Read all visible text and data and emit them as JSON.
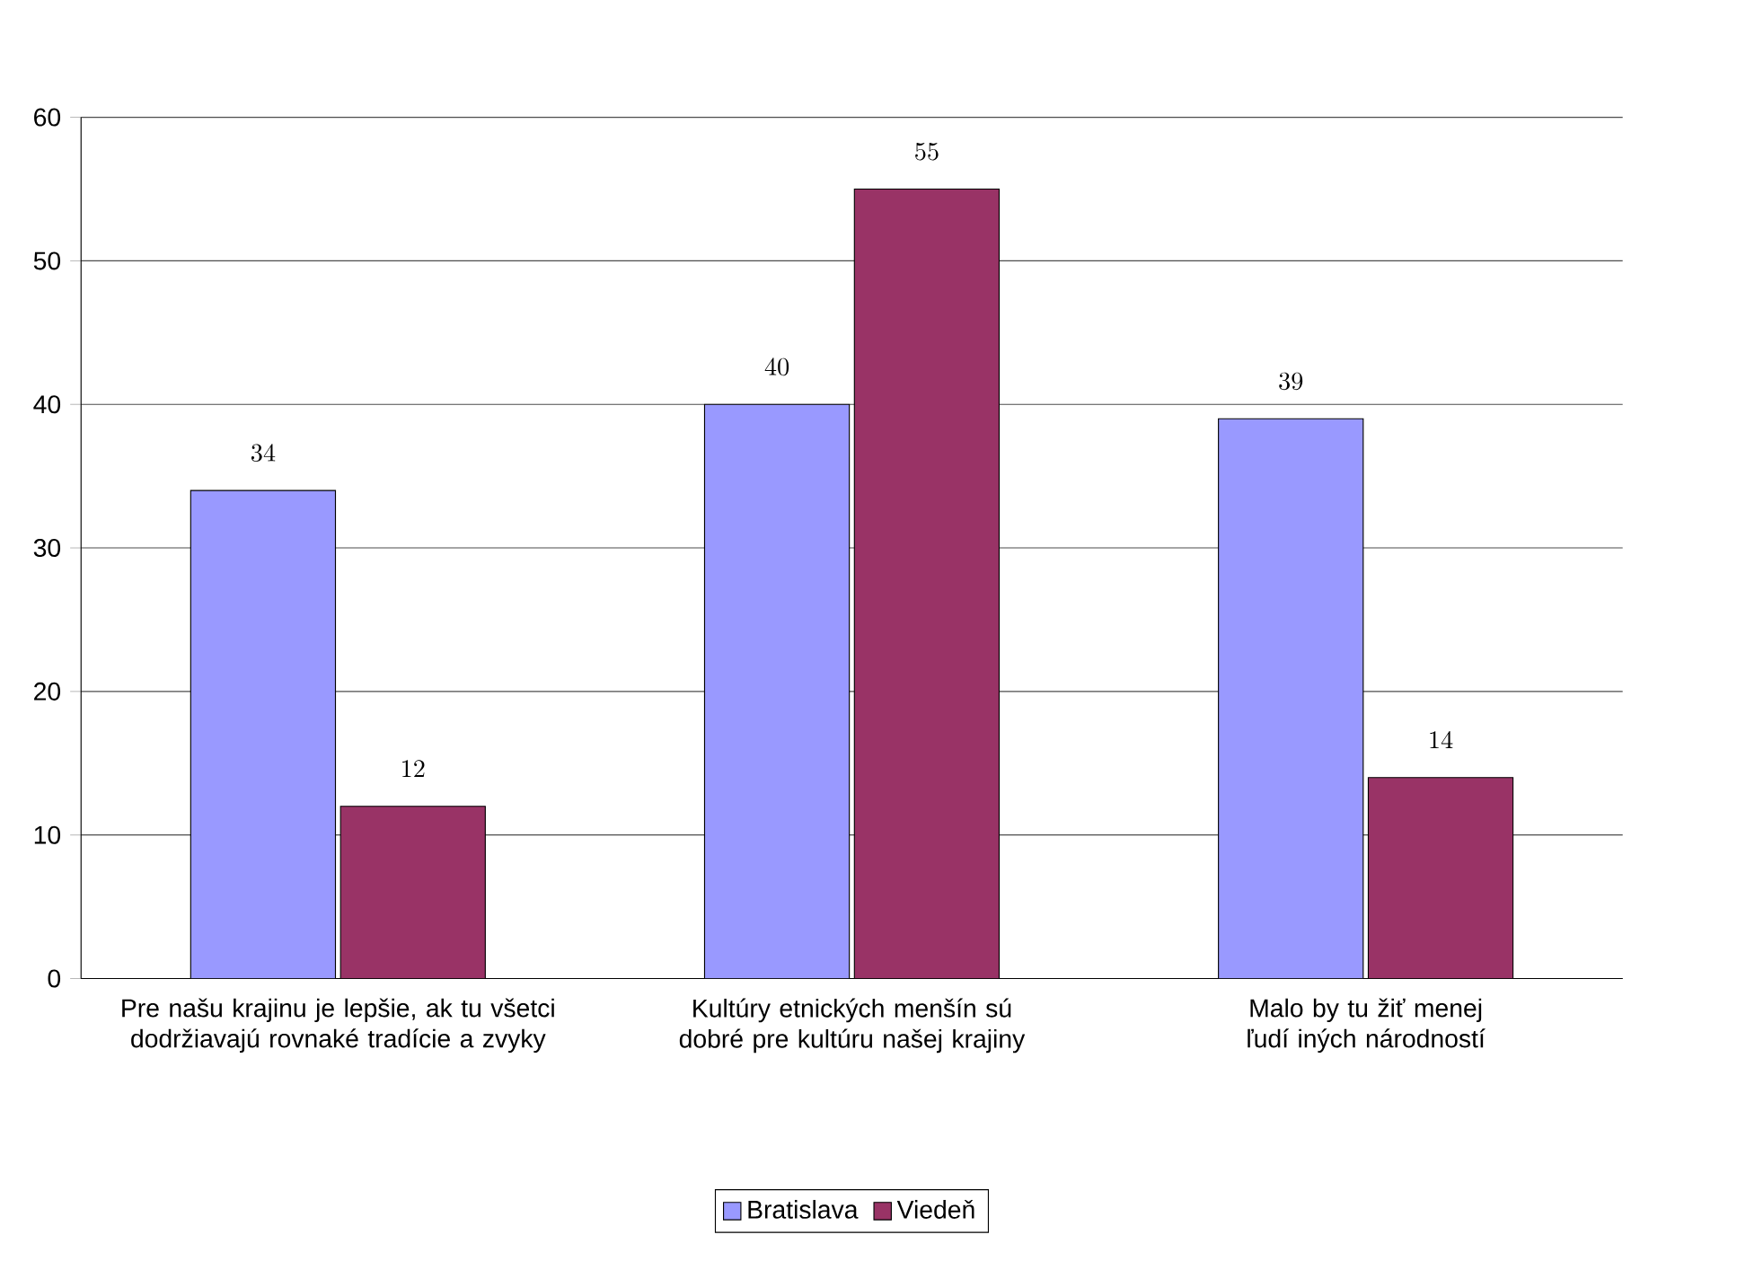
{
  "chart_data": {
    "type": "bar",
    "categories": [
      "Pre našu krajinu je lepšie, ak tu všetci dodržiavajú rovnaké tradície a zvyky",
      "Kultúry etnických menšín sú dobré pre kultúru našej krajiny",
      "Malo by tu žiť menej ľudí iných národností"
    ],
    "series": [
      {
        "name": "Bratislava",
        "color": "#9999ff",
        "values": [
          34,
          40,
          39
        ]
      },
      {
        "name": "Viedeň",
        "color": "#993366",
        "values": [
          12,
          55,
          14
        ]
      }
    ],
    "ylim": [
      0,
      60
    ],
    "yticks": [
      0,
      10,
      20,
      30,
      40,
      50,
      60
    ],
    "grid": "y",
    "legend": "bottom",
    "data_labels": true
  }
}
